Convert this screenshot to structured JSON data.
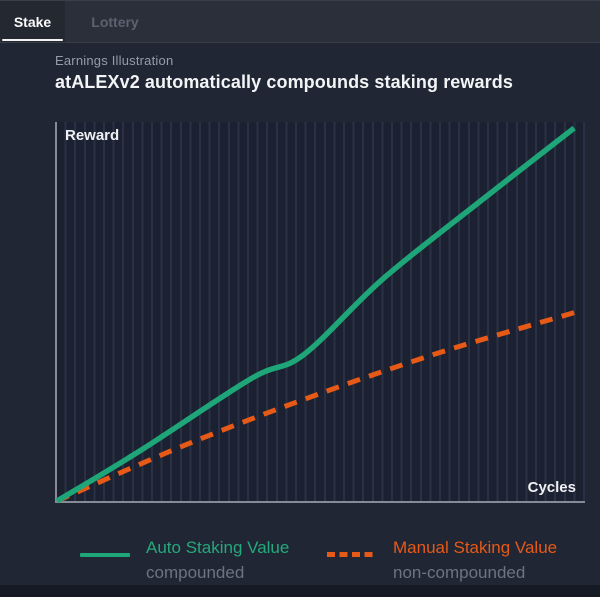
{
  "tabs": {
    "items": [
      {
        "label": "Stake",
        "active": true
      },
      {
        "label": "Lottery",
        "active": false
      }
    ]
  },
  "header": {
    "eyebrow": "Earnings Illustration",
    "title": "atALEXv2 automatically compounds staking rewards"
  },
  "chart_data": {
    "type": "line",
    "title": "Earnings Illustration",
    "xlabel": "Cycles",
    "ylabel": "Reward",
    "x_range": [
      0,
      100
    ],
    "y_range": [
      0,
      100
    ],
    "axes_numeric": false,
    "grid": "vertical",
    "legend_position": "bottom",
    "series": [
      {
        "name": "Auto Staking Value",
        "subtitle": "compounded",
        "line_style": "solid",
        "color": "#1ea578",
        "points": [
          [
            0,
            0
          ],
          [
            16,
            13.4
          ],
          [
            37,
            32.3
          ],
          [
            47,
            38.6
          ],
          [
            62,
            58.5
          ],
          [
            81,
            79.5
          ],
          [
            98.5,
            98.4
          ]
        ]
      },
      {
        "name": "Manual Staking Value",
        "subtitle": "non-compounded",
        "line_style": "dashed",
        "color": "#e75917",
        "points": [
          [
            0,
            0
          ],
          [
            23.6,
            14.3
          ],
          [
            48,
            27.3
          ],
          [
            73,
            39.2
          ],
          [
            99,
            49.9
          ]
        ]
      }
    ]
  },
  "colors": {
    "accent_green": "#1ea578",
    "accent_orange": "#e75917",
    "background": "#202634",
    "plot_background": "#1b2130",
    "gridline": "#2a3146",
    "axis": "#868c97"
  }
}
